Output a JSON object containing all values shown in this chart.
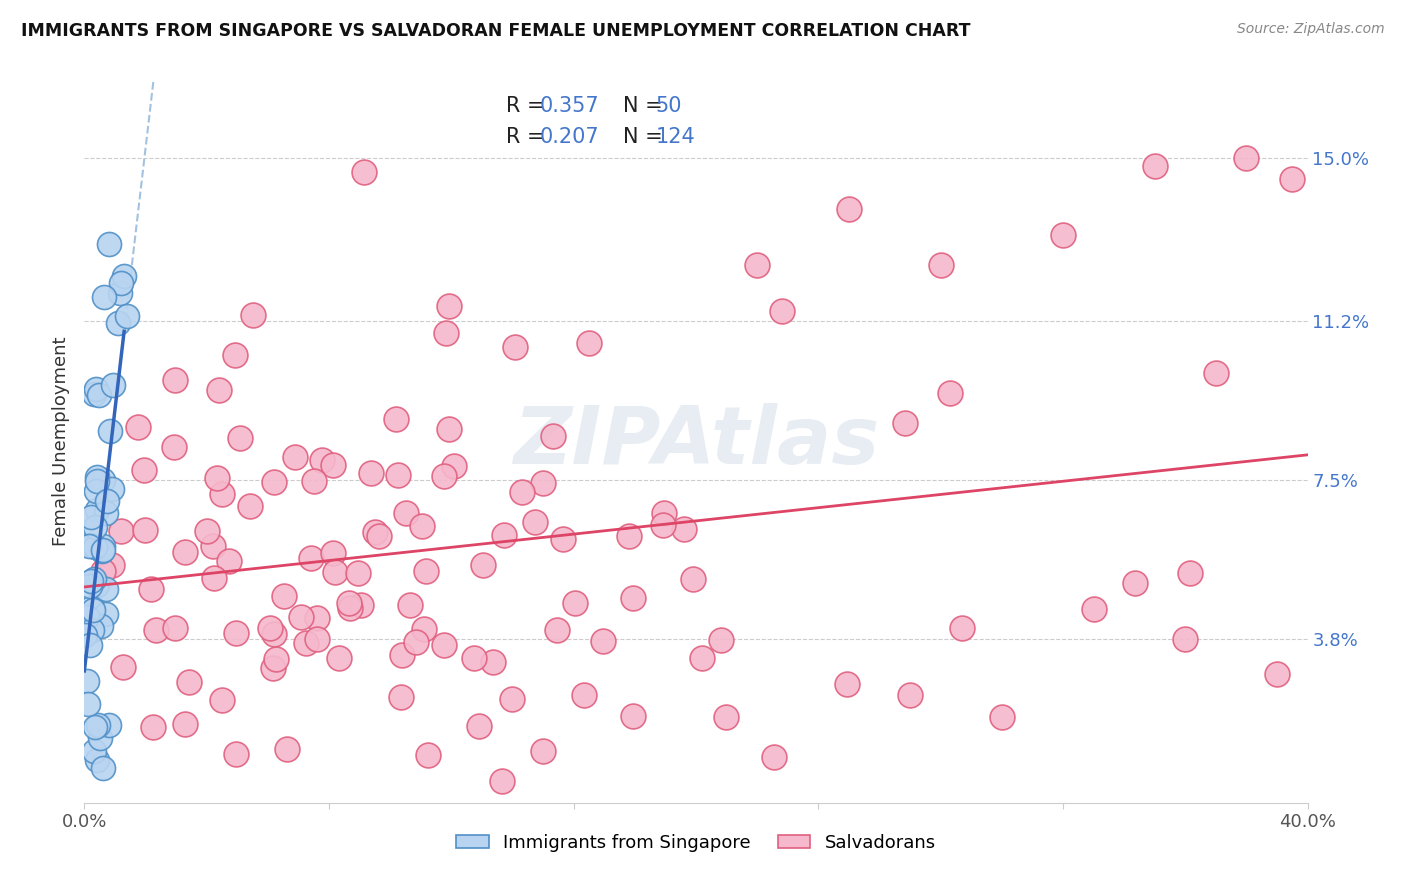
{
  "title": "IMMIGRANTS FROM SINGAPORE VS SALVADORAN FEMALE UNEMPLOYMENT CORRELATION CHART",
  "source": "Source: ZipAtlas.com",
  "ylabel": "Female Unemployment",
  "x_min": 0.0,
  "x_max": 0.4,
  "y_min": 0.0,
  "y_max": 0.168,
  "y_ticks": [
    0.038,
    0.075,
    0.112,
    0.15
  ],
  "y_tick_labels": [
    "3.8%",
    "7.5%",
    "11.2%",
    "15.0%"
  ],
  "x_ticks": [
    0.0,
    0.08,
    0.16,
    0.24,
    0.32,
    0.4
  ],
  "x_tick_labels": [
    "0.0%",
    "",
    "",
    "",
    "",
    "40.0%"
  ],
  "legend_R1": "0.357",
  "legend_N1": "50",
  "legend_R2": "0.207",
  "legend_N2": "124",
  "color_singapore_face": "#b8d4f0",
  "color_singapore_edge": "#5090c8",
  "color_salvadoran_face": "#f5b8cc",
  "color_salvadoran_edge": "#e06080",
  "color_singapore_regline": "#3366bb",
  "color_singapore_dashline": "#99bbdd",
  "color_salvadoran_regline": "#dd4466",
  "watermark": "ZIPAtlas",
  "legend_labels": [
    "Immigrants from Singapore",
    "Salvadorans"
  ],
  "text_color_label": "#333333",
  "text_color_blue": "#4477cc",
  "grid_color": "#cccccc"
}
